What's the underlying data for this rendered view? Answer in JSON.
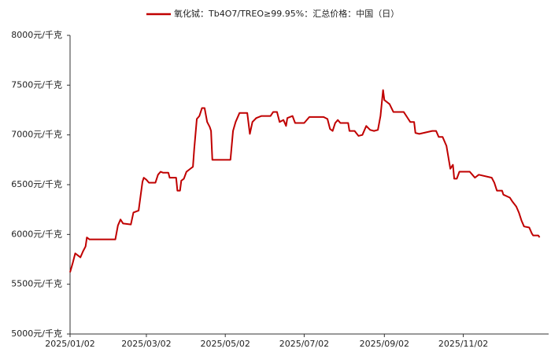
{
  "chart_data": {
    "type": "line",
    "x": [
      "2025/01/02",
      "2025/01/04",
      "2025/01/06",
      "2025/01/08",
      "2025/01/10",
      "2025/01/12",
      "2025/01/14",
      "2025/01/15",
      "2025/01/17",
      "2025/02/06",
      "2025/02/08",
      "2025/02/10",
      "2025/02/12",
      "2025/02/18",
      "2025/02/20",
      "2025/02/24",
      "2025/02/27",
      "2025/02/28",
      "2025/03/02",
      "2025/03/04",
      "2025/03/09",
      "2025/03/11",
      "2025/03/13",
      "2025/03/15",
      "2025/03/19",
      "2025/03/20",
      "2025/03/25",
      "2025/03/26",
      "2025/03/28",
      "2025/03/29",
      "2025/03/31",
      "2025/04/02",
      "2025/04/04",
      "2025/04/07",
      "2025/04/08",
      "2025/04/10",
      "2025/04/12",
      "2025/04/14",
      "2025/04/16",
      "2025/04/18",
      "2025/04/20",
      "2025/04/21",
      "2025/04/22",
      "2025/05/05",
      "2025/05/06",
      "2025/05/08",
      "2025/05/10",
      "2025/05/13",
      "2025/05/19",
      "2025/05/21",
      "2025/05/23",
      "2025/05/26",
      "2025/05/30",
      "2025/06/06",
      "2025/06/08",
      "2025/06/11",
      "2025/06/13",
      "2025/06/16",
      "2025/06/18",
      "2025/06/19",
      "2025/06/23",
      "2025/06/25",
      "2025/07/02",
      "2025/07/06",
      "2025/07/17",
      "2025/07/20",
      "2025/07/22",
      "2025/07/24",
      "2025/07/26",
      "2025/07/28",
      "2025/07/30",
      "2025/08/05",
      "2025/08/06",
      "2025/08/10",
      "2025/08/13",
      "2025/08/16",
      "2025/08/19",
      "2025/08/22",
      "2025/08/25",
      "2025/08/28",
      "2025/08/30",
      "2025/09/01",
      "2025/09/02",
      "2025/09/06",
      "2025/09/09",
      "2025/09/17",
      "2025/09/20",
      "2025/09/22",
      "2025/09/25",
      "2025/09/26",
      "2025/09/29",
      "2025/10/09",
      "2025/10/12",
      "2025/10/14",
      "2025/10/17",
      "2025/10/20",
      "2025/10/23",
      "2025/10/25",
      "2025/10/26",
      "2025/10/28",
      "2025/10/30",
      "2025/11/07",
      "2025/11/09",
      "2025/11/11",
      "2025/11/14",
      "2025/11/24",
      "2025/11/26",
      "2025/11/28",
      "2025/12/02",
      "2025/12/03",
      "2025/12/08",
      "2025/12/10",
      "2025/12/13",
      "2025/12/15",
      "2025/12/17",
      "2025/12/19",
      "2025/12/23",
      "2025/12/25",
      "2025/12/26",
      "2025/12/30",
      "2025/12/31"
    ],
    "series": [
      {
        "name": "氧化铽：Tb4O7/TREO≥99.95%：汇总价格：中国（日）",
        "color": "#c00000",
        "values": [
          5620,
          5710,
          5810,
          5790,
          5770,
          5830,
          5880,
          5970,
          5950,
          5950,
          6090,
          6150,
          6110,
          6100,
          6220,
          6240,
          6530,
          6570,
          6550,
          6520,
          6520,
          6600,
          6630,
          6620,
          6620,
          6570,
          6570,
          6440,
          6440,
          6540,
          6560,
          6630,
          6650,
          6680,
          6860,
          7160,
          7190,
          7270,
          7270,
          7130,
          7080,
          7040,
          6750,
          6750,
          6750,
          7040,
          7130,
          7220,
          7220,
          7010,
          7130,
          7170,
          7190,
          7190,
          7230,
          7230,
          7130,
          7150,
          7090,
          7170,
          7190,
          7120,
          7120,
          7180,
          7180,
          7160,
          7060,
          7040,
          7120,
          7150,
          7120,
          7120,
          7040,
          7040,
          6990,
          7000,
          7090,
          7050,
          7040,
          7050,
          7190,
          7450,
          7350,
          7310,
          7230,
          7230,
          7170,
          7130,
          7130,
          7020,
          7010,
          7040,
          7040,
          6980,
          6980,
          6890,
          6660,
          6700,
          6560,
          6560,
          6630,
          6630,
          6600,
          6570,
          6600,
          6570,
          6520,
          6440,
          6440,
          6400,
          6370,
          6330,
          6280,
          6220,
          6140,
          6080,
          6070,
          6010,
          5990,
          5990,
          5970
        ]
      }
    ],
    "xlim": [
      "2025/01/02",
      "2026/01/07"
    ],
    "xticks": [
      "2025/01/02",
      "2025/03/02",
      "2025/05/02",
      "2025/07/02",
      "2025/09/02",
      "2025/11/02"
    ],
    "ylim": [
      5000,
      8000
    ],
    "yticks": [
      {
        "value": 5000,
        "label": "5000元/千克"
      },
      {
        "value": 5500,
        "label": "5500元/千克"
      },
      {
        "value": 6000,
        "label": "6000元/千克"
      },
      {
        "value": 6500,
        "label": "6500元/千克"
      },
      {
        "value": 7000,
        "label": "7000元/千克"
      },
      {
        "value": 7500,
        "label": "7500元/千克"
      },
      {
        "value": 8000,
        "label": "8000元/千克"
      }
    ],
    "grid": false,
    "legend": "top"
  }
}
